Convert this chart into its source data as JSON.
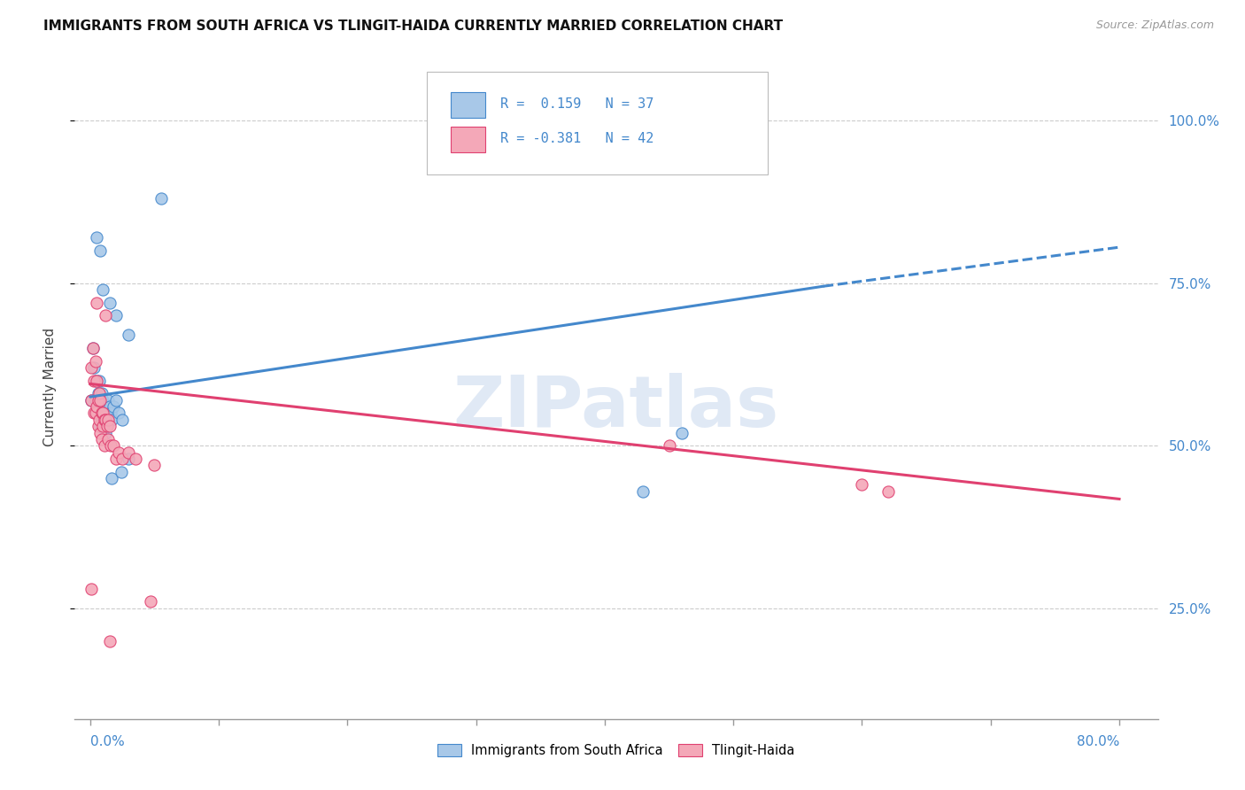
{
  "title": "IMMIGRANTS FROM SOUTH AFRICA VS TLINGIT-HAIDA CURRENTLY MARRIED CORRELATION CHART",
  "source": "Source: ZipAtlas.com",
  "ylabel": "Currently Married",
  "legend_label1": "Immigrants from South Africa",
  "legend_label2": "Tlingit-Haida",
  "r1": 0.159,
  "n1": 37,
  "r2": -0.381,
  "n2": 42,
  "color1": "#a8c8e8",
  "color2": "#f4a8b8",
  "trendline1_color": "#4488cc",
  "trendline2_color": "#e04070",
  "watermark": "ZIPatlas",
  "blue_dots_x": [
    0.001,
    0.003,
    0.004,
    0.005,
    0.006,
    0.007,
    0.007,
    0.008,
    0.008,
    0.009,
    0.009,
    0.01,
    0.011,
    0.012,
    0.012,
    0.013,
    0.014,
    0.015,
    0.016,
    0.017,
    0.018,
    0.02,
    0.022,
    0.025,
    0.03,
    0.002,
    0.005,
    0.008,
    0.01,
    0.015,
    0.02,
    0.03,
    0.46,
    0.43,
    0.055,
    0.017,
    0.024
  ],
  "blue_dots_y": [
    0.57,
    0.62,
    0.57,
    0.6,
    0.58,
    0.6,
    0.55,
    0.57,
    0.53,
    0.58,
    0.54,
    0.57,
    0.54,
    0.56,
    0.52,
    0.55,
    0.57,
    0.56,
    0.55,
    0.54,
    0.56,
    0.57,
    0.55,
    0.54,
    0.48,
    0.65,
    0.82,
    0.8,
    0.74,
    0.72,
    0.7,
    0.67,
    0.52,
    0.43,
    0.88,
    0.45,
    0.46
  ],
  "pink_dots_x": [
    0.001,
    0.001,
    0.002,
    0.003,
    0.003,
    0.004,
    0.004,
    0.005,
    0.005,
    0.006,
    0.006,
    0.007,
    0.007,
    0.008,
    0.008,
    0.009,
    0.009,
    0.01,
    0.01,
    0.011,
    0.011,
    0.012,
    0.013,
    0.014,
    0.014,
    0.015,
    0.016,
    0.018,
    0.02,
    0.022,
    0.025,
    0.03,
    0.035,
    0.05,
    0.001,
    0.015,
    0.047,
    0.45,
    0.6,
    0.62,
    0.005,
    0.012
  ],
  "pink_dots_y": [
    0.62,
    0.57,
    0.65,
    0.6,
    0.55,
    0.63,
    0.55,
    0.6,
    0.56,
    0.57,
    0.53,
    0.58,
    0.54,
    0.57,
    0.52,
    0.55,
    0.51,
    0.55,
    0.53,
    0.54,
    0.5,
    0.54,
    0.53,
    0.54,
    0.51,
    0.53,
    0.5,
    0.5,
    0.48,
    0.49,
    0.48,
    0.49,
    0.48,
    0.47,
    0.28,
    0.2,
    0.26,
    0.5,
    0.44,
    0.43,
    0.72,
    0.7
  ],
  "xlim": [
    -0.012,
    0.83
  ],
  "ylim": [
    0.08,
    1.1
  ],
  "yticks": [
    0.25,
    0.5,
    0.75,
    1.0
  ],
  "ytick_labels": [
    "25.0%",
    "50.0%",
    "75.0%",
    "100.0%"
  ],
  "xticks": [
    0.0,
    0.1,
    0.2,
    0.3,
    0.4,
    0.5,
    0.6,
    0.7,
    0.8
  ],
  "trendline1_x0": 0.0,
  "trendline1_y0": 0.575,
  "trendline1_x1": 0.57,
  "trendline1_y1": 0.745,
  "trendline1_xdash": 0.57,
  "trendline1_ydash": 0.745,
  "trendline1_x2": 0.8,
  "trendline1_y2": 0.805,
  "trendline2_x0": 0.0,
  "trendline2_y0": 0.595,
  "trendline2_x2": 0.8,
  "trendline2_y2": 0.418
}
